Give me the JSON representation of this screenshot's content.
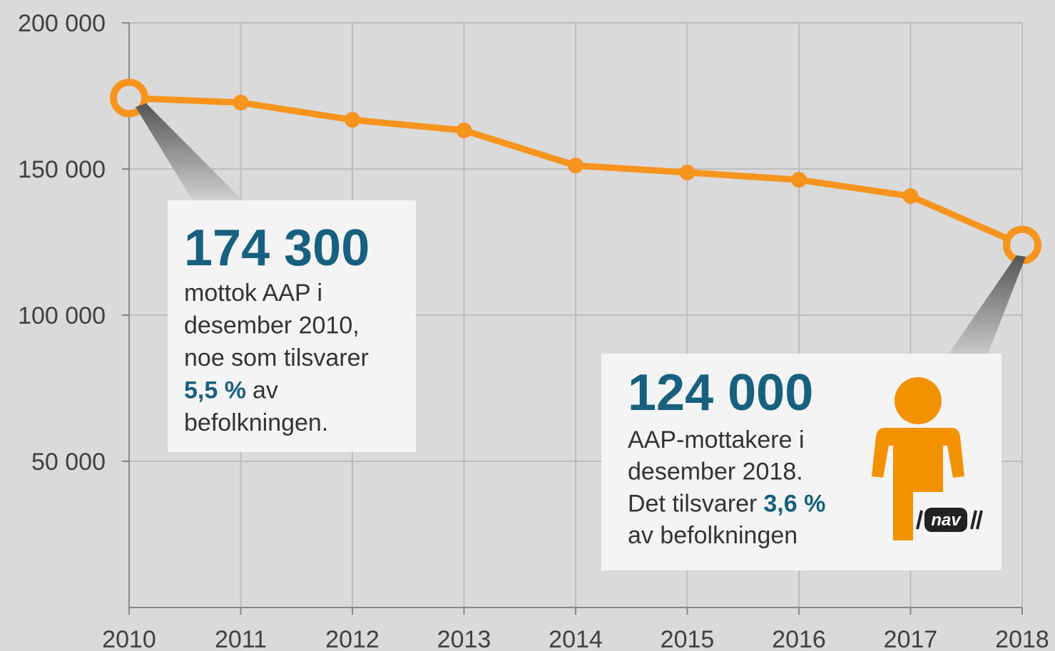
{
  "chart_data": {
    "type": "line",
    "x": [
      2010,
      2011,
      2012,
      2013,
      2014,
      2015,
      2016,
      2017,
      2018
    ],
    "xlim": [
      2010,
      2018
    ],
    "xticks": [
      2010,
      2011,
      2012,
      2013,
      2014,
      2015,
      2016,
      2017,
      2018
    ],
    "series": [
      {
        "color": "#f7941d",
        "values": [
          174300,
          172700,
          166800,
          163200,
          151200,
          148800,
          146300,
          140700,
          124000
        ],
        "value_labels": [
          "174 300",
          null,
          null,
          null,
          null,
          null,
          null,
          null,
          "124 000"
        ]
      }
    ],
    "ylim": [
      0,
      200000
    ],
    "yticks": [
      {
        "value": 50000,
        "label": "50 000"
      },
      {
        "value": 100000,
        "label": "100 000"
      },
      {
        "value": 150000,
        "label": "150 000"
      },
      {
        "value": 200000,
        "label": "200 000"
      }
    ],
    "grid": true,
    "annotations": [
      {
        "lines": [
          [
            "mottok AAP i"
          ],
          [
            "desember 2010,"
          ],
          [
            "noe som tilsvarer"
          ],
          [
            {
              "text": "5,5 %",
              "bold": true
            },
            "av"
          ],
          [
            "befolkningen."
          ]
        ]
      },
      {
        "lines": [
          [
            "AAP-mottakere i"
          ],
          [
            "desember 2018."
          ],
          [
            "Det tilsvarer",
            {
              "text": "3,6 %",
              "bold": true
            }
          ],
          [
            "av befolkningen"
          ]
        ]
      }
    ],
    "logo": "nav"
  }
}
